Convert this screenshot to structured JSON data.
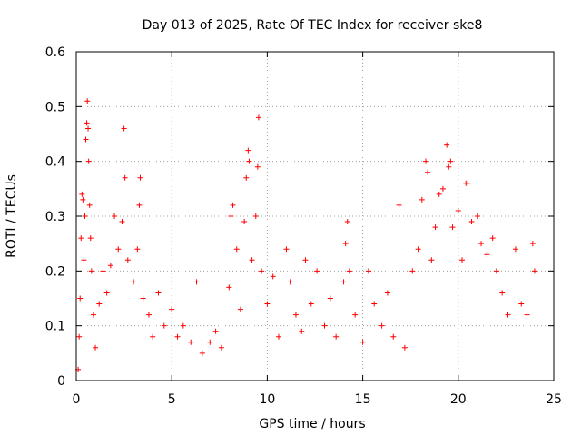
{
  "chart_data": {
    "type": "scatter",
    "title": "Day 013 of 2025, Rate Of TEC Index for receiver ske8",
    "xlabel": "GPS time / hours",
    "ylabel": "ROTI / TECUs",
    "xlim": [
      0,
      25
    ],
    "ylim": [
      0,
      0.6
    ],
    "xticks": [
      0,
      5,
      10,
      15,
      20,
      25
    ],
    "yticks": [
      0,
      0.1,
      0.2,
      0.3,
      0.4,
      0.5,
      0.6
    ],
    "xtick_labels": [
      "0",
      "5",
      "10",
      "15",
      "20",
      "25"
    ],
    "ytick_labels": [
      "0",
      "0.1",
      "0.2",
      "0.3",
      "0.4",
      "0.5",
      "0.6"
    ],
    "grid": true,
    "marker": "plus",
    "color": "#ff0000",
    "series": [
      {
        "name": "ROTI",
        "points": [
          [
            0.1,
            0.02
          ],
          [
            0.15,
            0.08
          ],
          [
            0.2,
            0.15
          ],
          [
            0.25,
            0.26
          ],
          [
            0.3,
            0.34
          ],
          [
            0.35,
            0.33
          ],
          [
            0.4,
            0.22
          ],
          [
            0.45,
            0.3
          ],
          [
            0.5,
            0.44
          ],
          [
            0.55,
            0.47
          ],
          [
            0.58,
            0.51
          ],
          [
            0.62,
            0.46
          ],
          [
            0.65,
            0.4
          ],
          [
            0.7,
            0.32
          ],
          [
            0.75,
            0.26
          ],
          [
            0.8,
            0.2
          ],
          [
            0.9,
            0.12
          ],
          [
            1.0,
            0.06
          ],
          [
            1.2,
            0.14
          ],
          [
            1.4,
            0.2
          ],
          [
            1.6,
            0.16
          ],
          [
            1.8,
            0.21
          ],
          [
            2.0,
            0.3
          ],
          [
            2.2,
            0.24
          ],
          [
            2.4,
            0.29
          ],
          [
            2.5,
            0.46
          ],
          [
            2.55,
            0.37
          ],
          [
            2.7,
            0.22
          ],
          [
            3.0,
            0.18
          ],
          [
            3.2,
            0.24
          ],
          [
            3.3,
            0.32
          ],
          [
            3.35,
            0.37
          ],
          [
            3.5,
            0.15
          ],
          [
            3.8,
            0.12
          ],
          [
            4.0,
            0.08
          ],
          [
            4.3,
            0.16
          ],
          [
            4.6,
            0.1
          ],
          [
            5.0,
            0.13
          ],
          [
            5.3,
            0.08
          ],
          [
            5.6,
            0.1
          ],
          [
            6.0,
            0.07
          ],
          [
            6.3,
            0.18
          ],
          [
            6.6,
            0.05
          ],
          [
            7.0,
            0.07
          ],
          [
            7.3,
            0.09
          ],
          [
            7.6,
            0.06
          ],
          [
            8.0,
            0.17
          ],
          [
            8.1,
            0.3
          ],
          [
            8.2,
            0.32
          ],
          [
            8.4,
            0.24
          ],
          [
            8.6,
            0.13
          ],
          [
            8.8,
            0.29
          ],
          [
            8.9,
            0.37
          ],
          [
            9.0,
            0.42
          ],
          [
            9.05,
            0.4
          ],
          [
            9.2,
            0.22
          ],
          [
            9.4,
            0.3
          ],
          [
            9.5,
            0.39
          ],
          [
            9.55,
            0.48
          ],
          [
            9.7,
            0.2
          ],
          [
            10.0,
            0.14
          ],
          [
            10.3,
            0.19
          ],
          [
            10.6,
            0.08
          ],
          [
            11.0,
            0.24
          ],
          [
            11.2,
            0.18
          ],
          [
            11.5,
            0.12
          ],
          [
            11.8,
            0.09
          ],
          [
            12.0,
            0.22
          ],
          [
            12.3,
            0.14
          ],
          [
            12.6,
            0.2
          ],
          [
            13.0,
            0.1
          ],
          [
            13.3,
            0.15
          ],
          [
            13.6,
            0.08
          ],
          [
            14.0,
            0.18
          ],
          [
            14.1,
            0.25
          ],
          [
            14.2,
            0.29
          ],
          [
            14.3,
            0.2
          ],
          [
            14.6,
            0.12
          ],
          [
            15.0,
            0.07
          ],
          [
            15.3,
            0.2
          ],
          [
            15.6,
            0.14
          ],
          [
            16.0,
            0.1
          ],
          [
            16.3,
            0.16
          ],
          [
            16.6,
            0.08
          ],
          [
            16.9,
            0.32
          ],
          [
            17.2,
            0.06
          ],
          [
            17.6,
            0.2
          ],
          [
            17.9,
            0.24
          ],
          [
            18.1,
            0.33
          ],
          [
            18.3,
            0.4
          ],
          [
            18.4,
            0.38
          ],
          [
            18.6,
            0.22
          ],
          [
            18.8,
            0.28
          ],
          [
            19.0,
            0.34
          ],
          [
            19.2,
            0.35
          ],
          [
            19.4,
            0.43
          ],
          [
            19.5,
            0.39
          ],
          [
            19.6,
            0.4
          ],
          [
            19.7,
            0.28
          ],
          [
            20.0,
            0.31
          ],
          [
            20.2,
            0.22
          ],
          [
            20.4,
            0.36
          ],
          [
            20.5,
            0.36
          ],
          [
            20.7,
            0.29
          ],
          [
            21.0,
            0.3
          ],
          [
            21.2,
            0.25
          ],
          [
            21.5,
            0.23
          ],
          [
            21.8,
            0.26
          ],
          [
            22.0,
            0.2
          ],
          [
            22.3,
            0.16
          ],
          [
            22.6,
            0.12
          ],
          [
            23.0,
            0.24
          ],
          [
            23.3,
            0.14
          ],
          [
            23.6,
            0.12
          ],
          [
            23.9,
            0.25
          ],
          [
            24.0,
            0.2
          ]
        ]
      }
    ]
  }
}
